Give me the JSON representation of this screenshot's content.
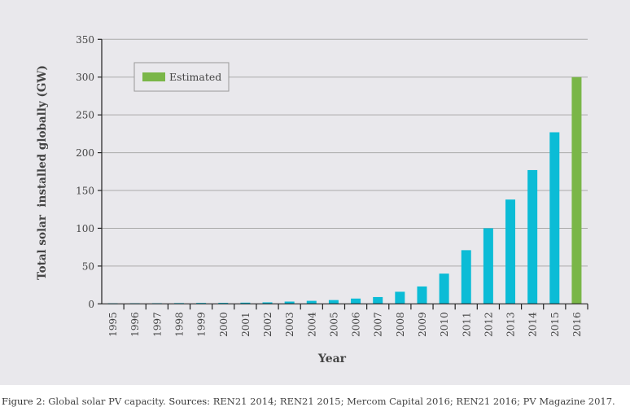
{
  "chart_data": {
    "type": "bar",
    "title": "",
    "xlabel": "Year",
    "ylabel": "Total solar  installed globally (GW)",
    "ylim": [
      0,
      350
    ],
    "yticks": [
      0,
      50,
      100,
      150,
      200,
      250,
      300,
      350
    ],
    "grid": true,
    "legend_position": "top-left",
    "legend": [
      {
        "name": "Estimated",
        "color": "#7ab648"
      }
    ],
    "colors": {
      "actual": "#0bbcd6",
      "estimated": "#7ab648"
    },
    "categories": [
      "1995",
      "1996",
      "1997",
      "1998",
      "1999",
      "2000",
      "2001",
      "2002",
      "2003",
      "2004",
      "2005",
      "2006",
      "2007",
      "2008",
      "2009",
      "2010",
      "2011",
      "2012",
      "2013",
      "2014",
      "2015",
      "2016"
    ],
    "values": [
      0.6,
      0.7,
      0.8,
      1,
      1.2,
      1.3,
      1.6,
      2,
      3,
      4,
      5,
      7,
      9,
      16,
      23,
      40,
      71,
      100,
      138,
      177,
      227,
      300
    ],
    "estimated": [
      false,
      false,
      false,
      false,
      false,
      false,
      false,
      false,
      false,
      false,
      false,
      false,
      false,
      false,
      false,
      false,
      false,
      false,
      false,
      false,
      false,
      true
    ]
  },
  "caption": {
    "figure_label": "Figure 2:",
    "text": " Global solar PV capacity. ",
    "sources_label": "Sources:",
    "sources": " REN21 2014; REN21 2015; Mercom Capital 2016; REN21 2016; PV Magazine 2017."
  }
}
